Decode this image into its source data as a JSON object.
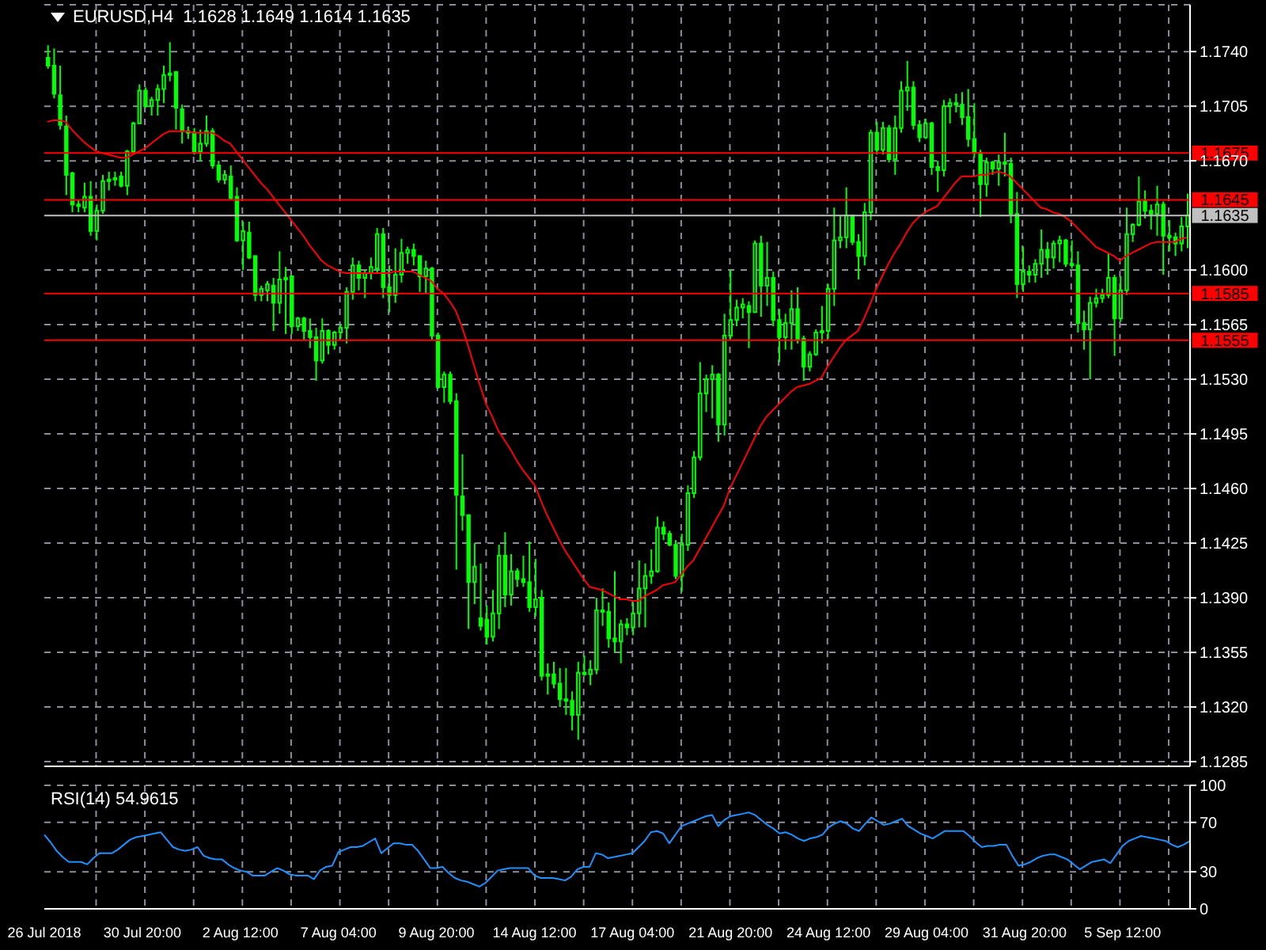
{
  "chart_data": [
    {
      "type": "candlestick",
      "title": "EURUSD,H4  1.1628 1.1649 1.1614 1.1635",
      "color": "#00ff00",
      "categories": [
        null,
        null,
        null,
        null,
        null,
        null,
        null,
        null,
        null,
        null,
        null,
        null,
        null,
        null,
        null,
        null,
        null,
        null,
        null,
        null,
        null,
        null,
        null,
        null,
        null,
        null,
        null,
        null,
        null,
        null,
        null,
        null,
        null,
        null,
        null,
        null,
        null,
        null,
        null,
        null,
        null,
        null,
        null,
        null,
        null,
        null,
        null,
        null,
        null,
        null,
        null,
        null,
        null,
        null,
        null,
        null,
        null,
        null,
        null,
        null,
        null,
        null,
        null,
        null,
        null,
        null,
        null,
        null,
        null,
        null,
        null,
        null,
        null,
        null,
        null,
        null,
        null,
        null,
        null,
        null,
        null,
        null,
        null,
        null,
        null,
        null,
        null,
        null,
        null,
        null,
        null,
        null,
        null,
        null,
        null,
        null,
        null,
        null,
        null,
        null,
        null,
        null,
        null,
        null,
        null,
        null,
        null,
        null,
        null,
        null,
        null,
        null,
        null,
        null,
        null,
        null,
        null,
        null,
        null,
        null,
        null,
        null,
        null,
        null,
        null,
        null,
        null,
        null,
        null,
        null,
        null,
        null,
        null,
        null,
        null,
        null,
        null,
        null,
        null,
        null,
        null,
        null,
        null,
        null,
        null,
        null,
        null,
        null,
        null,
        null,
        null,
        null,
        null,
        null,
        null,
        null,
        null,
        null,
        null,
        null,
        null,
        null,
        null,
        null,
        null,
        null,
        null,
        null,
        null,
        null,
        null,
        null,
        null,
        null,
        null,
        null,
        null,
        null,
        null,
        null,
        null,
        null,
        null,
        null,
        null,
        null,
        null,
        null
      ],
      "ohlc": [
        [
          1.1736,
          1.1744,
          1.1729,
          1.1731
        ],
        [
          1.1731,
          1.1742,
          1.171,
          1.1713
        ],
        [
          1.1712,
          1.1731,
          1.169,
          1.1693
        ],
        [
          1.1692,
          1.1699,
          1.1648,
          1.1661
        ],
        [
          1.1662,
          1.1663,
          1.1637,
          1.1642
        ],
        [
          1.1642,
          1.1645,
          1.1637,
          1.1641
        ],
        [
          1.164,
          1.1656,
          1.1637,
          1.1647
        ],
        [
          1.1647,
          1.1657,
          1.1622,
          1.1625
        ],
        [
          1.1625,
          1.1642,
          1.1619,
          1.1638
        ],
        [
          1.1638,
          1.1661,
          1.1636,
          1.1657
        ],
        [
          1.1657,
          1.1663,
          1.1651,
          1.1658
        ],
        [
          1.1658,
          1.1663,
          1.1654,
          1.1659
        ],
        [
          1.166,
          1.1663,
          1.1653,
          1.1654
        ],
        [
          1.1654,
          1.1677,
          1.1648,
          1.1676
        ],
        [
          1.1676,
          1.1695,
          1.1674,
          1.1694
        ],
        [
          1.1694,
          1.1719,
          1.1694,
          1.1715
        ],
        [
          1.1715,
          1.1717,
          1.1704,
          1.1705
        ],
        [
          1.1705,
          1.1711,
          1.1699,
          1.1709
        ],
        [
          1.1709,
          1.1719,
          1.1699,
          1.1716
        ],
        [
          1.1716,
          1.1731,
          1.1707,
          1.1725
        ],
        [
          1.1725,
          1.1746,
          1.1721,
          1.1726
        ],
        [
          1.1727,
          1.1727,
          1.169,
          1.1704
        ],
        [
          1.1703,
          1.1706,
          1.1681,
          1.1689
        ],
        [
          1.1689,
          1.1692,
          1.1684,
          1.1688
        ],
        [
          1.1688,
          1.1691,
          1.1674,
          1.1676
        ],
        [
          1.1676,
          1.169,
          1.167,
          1.1681
        ],
        [
          1.1681,
          1.1699,
          1.1679,
          1.1689
        ],
        [
          1.1689,
          1.1691,
          1.1665,
          1.1667
        ],
        [
          1.1667,
          1.167,
          1.1656,
          1.1658
        ],
        [
          1.1658,
          1.1664,
          1.1655,
          1.1661
        ],
        [
          1.166,
          1.1667,
          1.1645,
          1.1646
        ],
        [
          1.1647,
          1.1653,
          1.1618,
          1.1619
        ],
        [
          1.1619,
          1.1631,
          1.16,
          1.1625
        ],
        [
          1.1624,
          1.1631,
          1.1607,
          1.1608
        ],
        [
          1.1609,
          1.1609,
          1.158,
          1.1584
        ],
        [
          1.1584,
          1.159,
          1.158,
          1.1588
        ],
        [
          1.1587,
          1.1593,
          1.158,
          1.1591
        ],
        [
          1.159,
          1.1595,
          1.1561,
          1.1579
        ],
        [
          1.1579,
          1.1612,
          1.1572,
          1.1594
        ],
        [
          1.1594,
          1.1602,
          1.1559,
          1.1595
        ],
        [
          1.1596,
          1.1596,
          1.1559,
          1.1564
        ],
        [
          1.1564,
          1.157,
          1.1561,
          1.1569
        ],
        [
          1.1569,
          1.157,
          1.1555,
          1.1561
        ],
        [
          1.1561,
          1.1569,
          1.155,
          1.1557
        ],
        [
          1.1557,
          1.1563,
          1.1529,
          1.1542
        ],
        [
          1.1542,
          1.1569,
          1.154,
          1.1561
        ],
        [
          1.1561,
          1.1562,
          1.1546,
          1.1552
        ],
        [
          1.1552,
          1.1561,
          1.1549,
          1.156
        ],
        [
          1.156,
          1.1565,
          1.1556,
          1.1563
        ],
        [
          1.1563,
          1.1589,
          1.1553,
          1.1586
        ],
        [
          1.1586,
          1.1608,
          1.1581,
          1.1603
        ],
        [
          1.1603,
          1.1606,
          1.1587,
          1.1595
        ],
        [
          1.1595,
          1.16,
          1.1582,
          1.1598
        ],
        [
          1.1598,
          1.1608,
          1.1594,
          1.1602
        ],
        [
          1.1601,
          1.1627,
          1.1598,
          1.1623
        ],
        [
          1.1623,
          1.1627,
          1.1582,
          1.1589
        ],
        [
          1.1589,
          1.1603,
          1.1573,
          1.1584
        ],
        [
          1.1584,
          1.1614,
          1.1579,
          1.1597
        ],
        [
          1.1597,
          1.162,
          1.1592,
          1.1611
        ],
        [
          1.1611,
          1.1615,
          1.1604,
          1.1613
        ],
        [
          1.1613,
          1.1617,
          1.1603,
          1.1609
        ],
        [
          1.1609,
          1.1609,
          1.1586,
          1.1596
        ],
        [
          1.1596,
          1.1606,
          1.1585,
          1.1601
        ],
        [
          1.1601,
          1.1602,
          1.1555,
          1.1558
        ],
        [
          1.1558,
          1.156,
          1.1524,
          1.1525
        ],
        [
          1.1525,
          1.1535,
          1.1515,
          1.1533
        ],
        [
          1.1533,
          1.1535,
          1.1514,
          1.1516
        ],
        [
          1.1516,
          1.1521,
          1.1408,
          1.1456
        ],
        [
          1.1455,
          1.1482,
          1.1433,
          1.1443
        ],
        [
          1.1443,
          1.1443,
          1.137,
          1.14
        ],
        [
          1.14,
          1.1425,
          1.1386,
          1.141
        ],
        [
          1.1377,
          1.1412,
          1.1369,
          1.1372
        ],
        [
          1.1376,
          1.1385,
          1.136,
          1.1365
        ],
        [
          1.1365,
          1.1395,
          1.1362,
          1.138
        ],
        [
          1.138,
          1.1424,
          1.137,
          1.1417
        ],
        [
          1.1417,
          1.1432,
          1.1384,
          1.1392
        ],
        [
          1.1392,
          1.1418,
          1.1385,
          1.1407
        ],
        [
          1.1407,
          1.1409,
          1.1397,
          1.1402
        ],
        [
          1.1402,
          1.1417,
          1.1397,
          1.14
        ],
        [
          1.14,
          1.1426,
          1.1381,
          1.1384
        ],
        [
          1.1384,
          1.1415,
          1.1378,
          1.1389
        ],
        [
          1.139,
          1.1395,
          1.1337,
          1.134
        ],
        [
          1.134,
          1.1348,
          1.1328,
          1.1341
        ],
        [
          1.1341,
          1.1349,
          1.1332,
          1.1335
        ],
        [
          1.1335,
          1.1345,
          1.132,
          1.1325
        ],
        [
          1.1325,
          1.1345,
          1.1315,
          1.1324
        ],
        [
          1.1324,
          1.133,
          1.1305,
          1.1315
        ],
        [
          1.1315,
          1.1349,
          1.1299,
          1.1342
        ],
        [
          1.1342,
          1.1353,
          1.134,
          1.1341
        ],
        [
          1.1341,
          1.135,
          1.1334,
          1.1344
        ],
        [
          1.1344,
          1.139,
          1.1341,
          1.1382
        ],
        [
          1.1382,
          1.1396,
          1.1372,
          1.1381
        ],
        [
          1.1381,
          1.1387,
          1.1358,
          1.1364
        ],
        [
          1.1364,
          1.1407,
          1.1355,
          1.1362
        ],
        [
          1.1362,
          1.1376,
          1.1348,
          1.1373
        ],
        [
          1.1373,
          1.1377,
          1.1366,
          1.1371
        ],
        [
          1.1371,
          1.1387,
          1.1366,
          1.138
        ],
        [
          1.138,
          1.1414,
          1.1371,
          1.1396
        ],
        [
          1.1396,
          1.1412,
          1.1371,
          1.1404
        ],
        [
          1.1404,
          1.1421,
          1.1399,
          1.1407
        ],
        [
          1.1407,
          1.1442,
          1.1406,
          1.1435
        ],
        [
          1.1435,
          1.1439,
          1.1427,
          1.1431
        ],
        [
          1.1431,
          1.1433,
          1.1423,
          1.1424
        ],
        [
          1.1424,
          1.1427,
          1.1402,
          1.1404
        ],
        [
          1.1404,
          1.1431,
          1.1394,
          1.1424
        ],
        [
          1.1424,
          1.1462,
          1.142,
          1.1457
        ],
        [
          1.1457,
          1.1484,
          1.1454,
          1.148
        ],
        [
          1.148,
          1.1541,
          1.1478,
          1.1521
        ],
        [
          1.1521,
          1.1533,
          1.1509,
          1.153
        ],
        [
          1.153,
          1.1539,
          1.1505,
          1.1533
        ],
        [
          1.1533,
          1.1534,
          1.149,
          1.1501
        ],
        [
          1.1501,
          1.1572,
          1.1494,
          1.1558
        ],
        [
          1.1558,
          1.16,
          1.1556,
          1.1568
        ],
        [
          1.1568,
          1.1581,
          1.1564,
          1.1576
        ],
        [
          1.1576,
          1.1582,
          1.1569,
          1.1578
        ],
        [
          1.1577,
          1.158,
          1.155,
          1.1573
        ],
        [
          1.1573,
          1.1619,
          1.1573,
          1.1617
        ],
        [
          1.1617,
          1.1622,
          1.157,
          1.159
        ],
        [
          1.159,
          1.1618,
          1.1577,
          1.1595
        ],
        [
          1.1595,
          1.1599,
          1.1564,
          1.1568
        ],
        [
          1.1568,
          1.1575,
          1.1541,
          1.1557
        ],
        [
          1.1557,
          1.1572,
          1.1549,
          1.1566
        ],
        [
          1.1566,
          1.1587,
          1.1549,
          1.1575
        ],
        [
          1.1575,
          1.1589,
          1.1553,
          1.1556
        ],
        [
          1.1556,
          1.1558,
          1.1529,
          1.1538
        ],
        [
          1.1538,
          1.1548,
          1.1535,
          1.1546
        ],
        [
          1.1546,
          1.1562,
          1.1545,
          1.156
        ],
        [
          1.156,
          1.1577,
          1.1553,
          1.1561
        ],
        [
          1.1561,
          1.1591,
          1.1556,
          1.1588
        ],
        [
          1.1588,
          1.164,
          1.1577,
          1.1619
        ],
        [
          1.1619,
          1.1635,
          1.1614,
          1.1621
        ],
        [
          1.1621,
          1.1653,
          1.1614,
          1.1635
        ],
        [
          1.1635,
          1.1635,
          1.1616,
          1.1618
        ],
        [
          1.1618,
          1.1623,
          1.1594,
          1.1609
        ],
        [
          1.1609,
          1.1643,
          1.1603,
          1.1637
        ],
        [
          1.1637,
          1.169,
          1.1632,
          1.1688
        ],
        [
          1.1688,
          1.1695,
          1.1674,
          1.1677
        ],
        [
          1.1677,
          1.1695,
          1.1674,
          1.1691
        ],
        [
          1.1691,
          1.1693,
          1.1669,
          1.1671
        ],
        [
          1.1671,
          1.1699,
          1.1661,
          1.1691
        ],
        [
          1.1691,
          1.1721,
          1.1688,
          1.1715
        ],
        [
          1.1715,
          1.1734,
          1.1702,
          1.1717
        ],
        [
          1.1717,
          1.1721,
          1.169,
          1.1693
        ],
        [
          1.1693,
          1.1696,
          1.1682,
          1.1685
        ],
        [
          1.1685,
          1.1697,
          1.1684,
          1.1694
        ],
        [
          1.1694,
          1.1695,
          1.1661,
          1.1666
        ],
        [
          1.1666,
          1.167,
          1.165,
          1.1664
        ],
        [
          1.1664,
          1.1709,
          1.166,
          1.1705
        ],
        [
          1.1705,
          1.171,
          1.1694,
          1.1707
        ],
        [
          1.1707,
          1.1713,
          1.1701,
          1.1706
        ],
        [
          1.1706,
          1.1714,
          1.1693,
          1.1698
        ],
        [
          1.1698,
          1.1716,
          1.1679,
          1.1684
        ],
        [
          1.1684,
          1.1707,
          1.1672,
          1.1675
        ],
        [
          1.1675,
          1.1677,
          1.1634,
          1.1655
        ],
        [
          1.1655,
          1.1672,
          1.1647,
          1.1669
        ],
        [
          1.1669,
          1.167,
          1.1661,
          1.1665
        ],
        [
          1.1665,
          1.1674,
          1.1654,
          1.1669
        ],
        [
          1.1669,
          1.1688,
          1.166,
          1.1668
        ],
        [
          1.1668,
          1.1672,
          1.163,
          1.1636
        ],
        [
          1.1636,
          1.165,
          1.1582,
          1.1591
        ],
        [
          1.1591,
          1.1615,
          1.1586,
          1.1599
        ],
        [
          1.1599,
          1.1603,
          1.1592,
          1.1597
        ],
        [
          1.1597,
          1.1607,
          1.1592,
          1.1604
        ],
        [
          1.1604,
          1.1626,
          1.1595,
          1.1613
        ],
        [
          1.1613,
          1.1618,
          1.1597,
          1.1608
        ],
        [
          1.1608,
          1.1619,
          1.1601,
          1.1617
        ],
        [
          1.1617,
          1.1622,
          1.1605,
          1.1619
        ],
        [
          1.1619,
          1.162,
          1.1602,
          1.1604
        ],
        [
          1.1604,
          1.1619,
          1.1601,
          1.1603
        ],
        [
          1.1603,
          1.1612,
          1.156,
          1.1566
        ],
        [
          1.1566,
          1.1574,
          1.1549,
          1.1562
        ],
        [
          1.1562,
          1.1583,
          1.153,
          1.1579
        ],
        [
          1.1579,
          1.1588,
          1.1576,
          1.1582
        ],
        [
          1.1582,
          1.1588,
          1.1579,
          1.1584
        ],
        [
          1.1584,
          1.1611,
          1.1582,
          1.1595
        ],
        [
          1.1595,
          1.1597,
          1.1545,
          1.1569
        ],
        [
          1.1569,
          1.1596,
          1.1567,
          1.1587
        ],
        [
          1.1587,
          1.164,
          1.1584,
          1.1623
        ],
        [
          1.1623,
          1.163,
          1.1618,
          1.1629
        ],
        [
          1.1629,
          1.166,
          1.1628,
          1.1644
        ],
        [
          1.1644,
          1.1651,
          1.1633,
          1.1638
        ],
        [
          1.1638,
          1.1642,
          1.1626,
          1.1636
        ],
        [
          1.1636,
          1.1654,
          1.1622,
          1.1642
        ],
        [
          1.1642,
          1.1644,
          1.1597,
          1.1622
        ],
        [
          1.1622,
          1.1632,
          1.1612,
          1.1621
        ],
        [
          1.1621,
          1.1624,
          1.1609,
          1.1617
        ],
        [
          1.1617,
          1.1634,
          1.1612,
          1.1628
        ],
        [
          1.1628,
          1.1649,
          1.1614,
          1.1635
        ]
      ],
      "series": [
        {
          "type": "line",
          "color": "#ff0000",
          "values": [
            1.1695,
            1.1696,
            1.1696,
            1.1695,
            1.169,
            1.1686,
            1.1682,
            1.1679,
            1.1676,
            1.1675,
            1.1674,
            1.1673,
            1.1672,
            1.1672,
            1.1674,
            1.1676,
            1.1678,
            1.1681,
            1.1684,
            1.1687,
            1.1689,
            1.1689,
            1.1689,
            1.1689,
            1.1688,
            1.1688,
            1.1688,
            1.1688,
            1.1686,
            1.1683,
            1.1681,
            1.1676,
            1.1671,
            1.1666,
            1.1661,
            1.1656,
            1.1652,
            1.1647,
            1.1642,
            1.1637,
            1.1632,
            1.1627,
            1.1622,
            1.1616,
            1.1611,
            1.1606,
            1.1603,
            1.1601,
            1.1599,
            1.1598,
            1.1598,
            1.1598,
            1.1598,
            1.1598,
            1.1598,
            1.1598,
            1.1598,
            1.1599,
            1.1599,
            1.1599,
            1.1599,
            1.1597,
            1.1595,
            1.1593,
            1.1588,
            1.1585,
            1.158,
            1.1574,
            1.1564,
            1.1552,
            1.1539,
            1.1526,
            1.1514,
            1.1506,
            1.1497,
            1.1491,
            1.1485,
            1.1478,
            1.1472,
            1.1467,
            1.1462,
            1.1452,
            1.1443,
            1.1435,
            1.1427,
            1.142,
            1.1414,
            1.1408,
            1.1402,
            1.1397,
            1.1396,
            1.1395,
            1.1393,
            1.1391,
            1.1389,
            1.1389,
            1.1388,
            1.1388,
            1.1391,
            1.1393,
            1.1395,
            1.1398,
            1.1399,
            1.14,
            1.1405,
            1.141,
            1.1414,
            1.1421,
            1.1428,
            1.1435,
            1.1442,
            1.1449,
            1.146,
            1.1468,
            1.1476,
            1.1484,
            1.1492,
            1.15,
            1.1506,
            1.151,
            1.1514,
            1.1518,
            1.1522,
            1.1525,
            1.1526,
            1.1527,
            1.1529,
            1.1531,
            1.1538,
            1.1544,
            1.155,
            1.1555,
            1.1558,
            1.1561,
            1.1569,
            1.1578,
            1.1588,
            1.1596,
            1.1604,
            1.1611,
            1.1617,
            1.1624,
            1.163,
            1.1634,
            1.1637,
            1.1639,
            1.1641,
            1.1646,
            1.1651,
            1.1656,
            1.166,
            1.166,
            1.166,
            1.1661,
            1.1661,
            1.1662,
            1.1663,
            1.1662,
            1.166,
            1.1656,
            1.1652,
            1.1648,
            1.1644,
            1.164,
            1.1639,
            1.1637,
            1.1636,
            1.1634,
            1.1631,
            1.1627,
            1.1623,
            1.1619,
            1.1615,
            1.1613,
            1.1611,
            1.1609,
            1.1606,
            1.1609,
            1.1611,
            1.1613,
            1.1615,
            1.1617,
            1.1618,
            1.1618,
            1.1618,
            1.1618,
            1.162,
            1.1621
          ]
        }
      ],
      "ylim": [
        1.1282,
        1.177
      ],
      "yticks": [
        {
          "value": 1.1285,
          "label": "1.1285"
        },
        {
          "value": 1.132,
          "label": "1.1320"
        },
        {
          "value": 1.1355,
          "label": "1.1355"
        },
        {
          "value": 1.139,
          "label": "1.1390"
        },
        {
          "value": 1.1425,
          "label": "1.1425"
        },
        {
          "value": 1.146,
          "label": "1.1460"
        },
        {
          "value": 1.1495,
          "label": "1.1495"
        },
        {
          "value": 1.153,
          "label": "1.1530"
        },
        {
          "value": 1.1565,
          "label": "1.1565"
        },
        {
          "value": 1.16,
          "label": "1.1600"
        },
        {
          "value": 1.167,
          "label": "1.1670"
        },
        {
          "value": 1.1705,
          "label": "1.1705"
        },
        {
          "value": 1.174,
          "label": "1.1740"
        }
      ],
      "ref_lines": [
        {
          "axis": "y",
          "value": 1.1675,
          "label": "1.1675",
          "color": "#ff0000"
        },
        {
          "axis": "y",
          "value": 1.1645,
          "label": "1.1645",
          "color": "#ff0000"
        },
        {
          "axis": "y",
          "value": 1.1635,
          "label": "1.1635",
          "color": "#c0c0c0"
        },
        {
          "axis": "y",
          "value": 1.1585,
          "label": "1.1585",
          "color": "#ff0000"
        },
        {
          "axis": "y",
          "value": 1.1555,
          "label": "1.1555",
          "color": "#ff0000"
        }
      ],
      "grid": true,
      "tick_labels": "y"
    },
    {
      "type": "line",
      "title": "RSI(14) 54.9615",
      "categories": [
        "26 Jul 2018",
        null,
        null,
        null,
        null,
        null,
        null,
        null,
        null,
        null,
        null,
        null,
        null,
        null,
        null,
        null,
        "30 Jul 20:00",
        null,
        null,
        null,
        null,
        null,
        null,
        null,
        null,
        null,
        null,
        null,
        null,
        null,
        null,
        null,
        "2 Aug 12:00",
        null,
        null,
        null,
        null,
        null,
        null,
        null,
        null,
        null,
        null,
        null,
        null,
        null,
        null,
        null,
        "7 Aug 04:00",
        null,
        null,
        null,
        null,
        null,
        null,
        null,
        null,
        null,
        null,
        null,
        null,
        null,
        null,
        null,
        "9 Aug 20:00",
        null,
        null,
        null,
        null,
        null,
        null,
        null,
        null,
        null,
        null,
        null,
        null,
        null,
        null,
        null,
        "14 Aug 12:00",
        null,
        null,
        null,
        null,
        null,
        null,
        null,
        null,
        null,
        null,
        null,
        null,
        null,
        null,
        null,
        "17 Aug 04:00",
        null,
        null,
        null,
        null,
        null,
        null,
        null,
        null,
        null,
        null,
        null,
        null,
        null,
        null,
        null,
        "21 Aug 20:00",
        null,
        null,
        null,
        null,
        null,
        null,
        null,
        null,
        null,
        null,
        null,
        null,
        null,
        null,
        null,
        "24 Aug 12:00",
        null,
        null,
        null,
        null,
        null,
        null,
        null,
        null,
        null,
        null,
        null,
        null,
        null,
        null,
        null,
        "29 Aug 04:00",
        null,
        null,
        null,
        null,
        null,
        null,
        null,
        null,
        null,
        null,
        null,
        null,
        null,
        null,
        null,
        "31 Aug 20:00",
        null,
        null,
        null,
        null,
        null,
        null,
        null,
        null,
        null,
        null,
        null,
        null,
        null,
        null,
        null,
        "5 Sep 12:00",
        null,
        null,
        null,
        null,
        null,
        null,
        null,
        null,
        null,
        null,
        null
      ],
      "series": [
        {
          "color": "#1e90ff",
          "values": [
            60,
            54,
            47,
            42,
            38,
            38,
            38,
            36,
            41,
            45,
            45,
            45,
            48,
            52,
            56,
            58,
            59,
            60,
            61,
            62,
            56,
            50,
            48,
            47,
            48,
            50,
            43,
            41,
            40,
            40,
            36,
            33,
            31,
            30,
            27,
            27,
            27,
            30,
            33,
            31,
            28,
            27,
            27,
            27,
            24,
            31,
            34,
            35,
            46,
            48,
            50,
            50,
            51,
            54,
            57,
            45,
            49,
            53,
            53,
            52,
            52,
            47,
            40,
            33,
            33,
            34,
            29,
            25,
            23,
            22,
            20,
            18,
            21,
            26,
            31,
            32,
            33,
            33,
            33,
            33,
            27,
            25,
            25,
            25,
            24,
            23,
            26,
            32,
            34,
            34,
            45,
            44,
            41,
            42,
            43,
            44,
            45,
            50,
            55,
            62,
            63,
            61,
            53,
            60,
            67,
            69,
            71,
            73,
            75,
            76,
            67,
            72,
            75,
            76,
            77,
            78,
            76,
            72,
            68,
            65,
            61,
            62,
            60,
            57,
            55,
            57,
            58,
            60,
            66,
            69,
            71,
            69,
            65,
            63,
            69,
            74,
            71,
            68,
            69,
            71,
            73,
            67,
            64,
            61,
            59,
            57,
            60,
            63,
            63,
            63,
            63,
            59,
            54,
            50,
            51,
            51,
            52,
            52,
            43,
            35,
            36,
            38,
            41,
            43,
            44,
            44,
            42,
            40,
            36,
            32,
            35,
            38,
            39,
            40,
            37,
            44,
            51,
            55,
            57,
            59,
            58,
            57,
            56,
            55,
            52,
            50,
            52,
            55
          ]
        }
      ],
      "ylim": [
        0,
        100
      ],
      "yticks": [
        0,
        30,
        70,
        100
      ],
      "grid": true
    }
  ]
}
